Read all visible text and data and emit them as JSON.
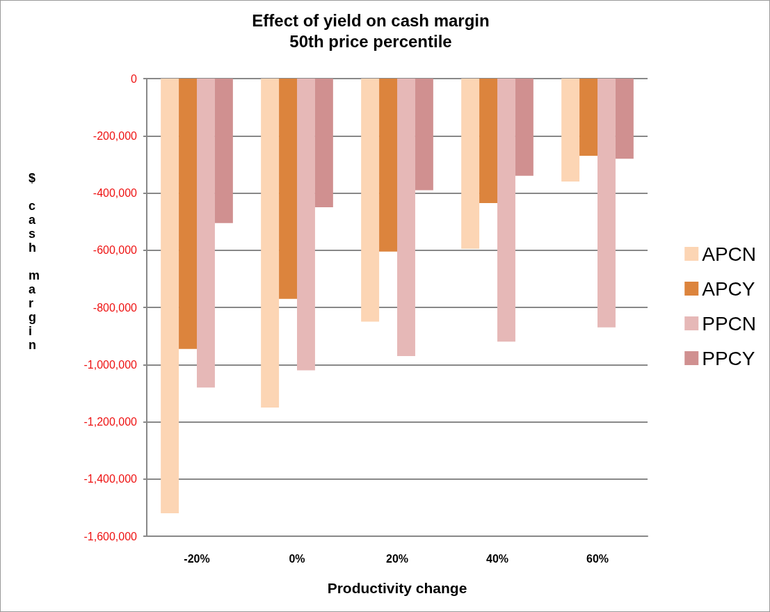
{
  "chart_data": {
    "type": "bar",
    "title": "Effect of yield on cash margin",
    "subtitle": "50th price percentile",
    "xlabel": "Productivity change",
    "ylabel": "$ cash margin",
    "categories": [
      "-20%",
      "0%",
      "20%",
      "40%",
      "60%"
    ],
    "series": [
      {
        "name": "APCN",
        "color": "#fcd5b4",
        "values": [
          -1520000,
          -1150000,
          -850000,
          -595000,
          -360000
        ]
      },
      {
        "name": "APCY",
        "color": "#dc843d",
        "values": [
          -945000,
          -770000,
          -605000,
          -435000,
          -270000
        ]
      },
      {
        "name": "PPCN",
        "color": "#e6b8b7",
        "values": [
          -1080000,
          -1020000,
          -970000,
          -920000,
          -870000
        ]
      },
      {
        "name": "PPCY",
        "color": "#d09090",
        "values": [
          -505000,
          -450000,
          -390000,
          -340000,
          -280000
        ]
      }
    ],
    "ylim": [
      -1600000,
      0
    ],
    "yticks": [
      {
        "value": -1600000,
        "label": "-1,600,000"
      },
      {
        "value": -1400000,
        "label": "-1,400,000"
      },
      {
        "value": -1200000,
        "label": "-1,200,000"
      },
      {
        "value": -1000000,
        "label": "-1,000,000"
      },
      {
        "value": -800000,
        "label": "-800,000"
      },
      {
        "value": -600000,
        "label": "-600,000"
      },
      {
        "value": -400000,
        "label": "-400,000"
      },
      {
        "value": -200000,
        "label": "-200,000"
      },
      0
    ],
    "grid": "y",
    "legend": "right"
  }
}
